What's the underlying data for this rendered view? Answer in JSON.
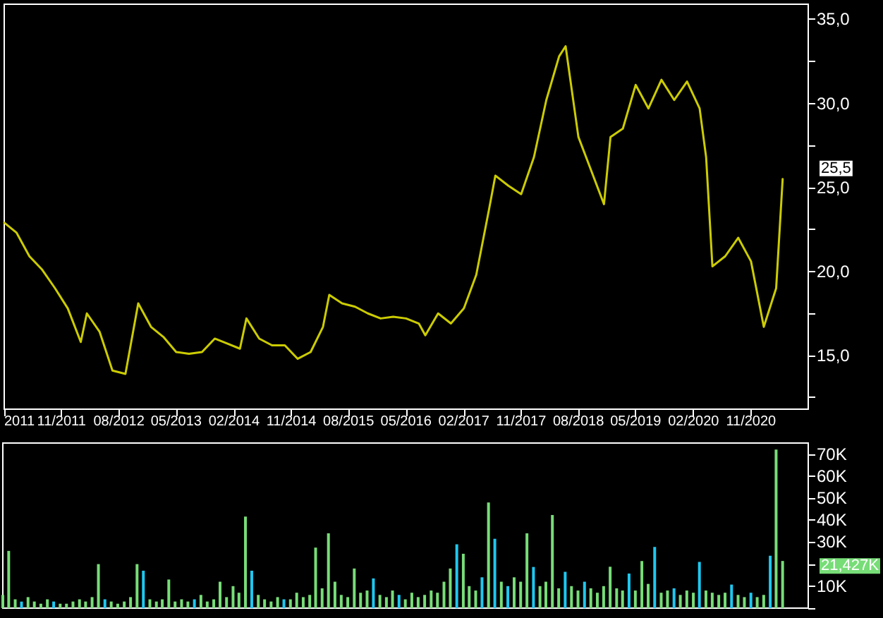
{
  "chart_data": [
    {
      "type": "line",
      "x": [
        "2011-02",
        "2011-04",
        "2011-06",
        "2011-08",
        "2011-10",
        "2011-12",
        "2012-02",
        "2012-03",
        "2012-05",
        "2012-07",
        "2012-09",
        "2012-11",
        "2013-01",
        "2013-03",
        "2013-05",
        "2013-07",
        "2013-09",
        "2013-11",
        "2014-01",
        "2014-03",
        "2014-04",
        "2014-06",
        "2014-08",
        "2014-10",
        "2014-12",
        "2015-02",
        "2015-04",
        "2015-05",
        "2015-07",
        "2015-09",
        "2015-11",
        "2016-01",
        "2016-03",
        "2016-05",
        "2016-07",
        "2016-08",
        "2016-10",
        "2016-12",
        "2017-02",
        "2017-04",
        "2017-06",
        "2017-07",
        "2017-09",
        "2017-11",
        "2018-01",
        "2018-03",
        "2018-05",
        "2018-06",
        "2018-08",
        "2018-10",
        "2018-12",
        "2019-01",
        "2019-03",
        "2019-05",
        "2019-07",
        "2019-09",
        "2019-11",
        "2020-01",
        "2020-03",
        "2020-04",
        "2020-05",
        "2020-07",
        "2020-09",
        "2020-11",
        "2021-01",
        "2021-03",
        "2021-04"
      ],
      "series": [
        {
          "color": "#cccc00",
          "values": [
            22.9,
            22.3,
            20.9,
            20.1,
            19.0,
            17.8,
            15.8,
            17.5,
            16.4,
            14.1,
            13.9,
            18.1,
            16.7,
            16.1,
            15.2,
            15.1,
            15.2,
            16.0,
            15.7,
            15.4,
            17.2,
            16.0,
            15.6,
            15.6,
            14.8,
            15.2,
            16.7,
            18.6,
            18.1,
            17.9,
            17.5,
            17.2,
            17.3,
            17.2,
            16.9,
            16.2,
            17.5,
            16.9,
            17.8,
            19.8,
            23.7,
            25.7,
            25.1,
            24.6,
            26.8,
            30.2,
            32.8,
            33.4,
            28.0,
            26.0,
            24.0,
            28.0,
            28.5,
            31.1,
            29.7,
            31.4,
            30.2,
            31.3,
            29.7,
            26.8,
            20.3,
            20.9,
            22.0,
            20.6,
            16.7,
            19.0,
            25.5
          ]
        }
      ],
      "xlim": [
        "2011-02",
        "2021-08"
      ],
      "xticks": [
        {
          "value": "2011-02",
          "label": "2011"
        },
        {
          "value": "2011-11",
          "label": "11/2011"
        },
        {
          "value": "2012-08",
          "label": "08/2012"
        },
        {
          "value": "2013-05",
          "label": "05/2013"
        },
        {
          "value": "2014-02",
          "label": "02/2014"
        },
        {
          "value": "2014-11",
          "label": "11/2014"
        },
        {
          "value": "2015-08",
          "label": "08/2015"
        },
        {
          "value": "2016-05",
          "label": "05/2016"
        },
        {
          "value": "2017-02",
          "label": "02/2017"
        },
        {
          "value": "2017-11",
          "label": "11/2017"
        },
        {
          "value": "2018-08",
          "label": "08/2018"
        },
        {
          "value": "2019-05",
          "label": "05/2019"
        },
        {
          "value": "2020-02",
          "label": "02/2020"
        },
        {
          "value": "2020-11",
          "label": "11/2020"
        }
      ],
      "ylim": [
        11.8,
        35.9
      ],
      "yticks": [
        {
          "value": 12.5,
          "label": null
        },
        {
          "value": 15,
          "label": "15,0"
        },
        {
          "value": 17.5,
          "label": null
        },
        {
          "value": 20,
          "label": "20,0"
        },
        {
          "value": 22.5,
          "label": null
        },
        {
          "value": 25,
          "label": "25,0"
        },
        {
          "value": 27.5,
          "label": null
        },
        {
          "value": 30,
          "label": "30,0"
        },
        {
          "value": 32.5,
          "label": null
        },
        {
          "value": 35,
          "label": "35,0"
        }
      ],
      "annotations": [
        "25,5"
      ],
      "marker": "none",
      "line_style": "solid",
      "grid": false
    },
    {
      "type": "bar",
      "x": [
        "2011-02",
        "2011-03",
        "2011-04",
        "2011-05",
        "2011-06",
        "2011-07",
        "2011-08",
        "2011-09",
        "2011-10",
        "2011-11",
        "2011-12",
        "2012-01",
        "2012-02",
        "2012-03",
        "2012-04",
        "2012-05",
        "2012-06",
        "2012-07",
        "2012-08",
        "2012-09",
        "2012-10",
        "2012-11",
        "2012-12",
        "2013-01",
        "2013-02",
        "2013-03",
        "2013-04",
        "2013-05",
        "2013-06",
        "2013-07",
        "2013-08",
        "2013-09",
        "2013-10",
        "2013-11",
        "2013-12",
        "2014-01",
        "2014-02",
        "2014-03",
        "2014-04",
        "2014-05",
        "2014-06",
        "2014-07",
        "2014-08",
        "2014-09",
        "2014-10",
        "2014-11",
        "2014-12",
        "2015-01",
        "2015-02",
        "2015-03",
        "2015-04",
        "2015-05",
        "2015-06",
        "2015-07",
        "2015-08",
        "2015-09",
        "2015-10",
        "2015-11",
        "2015-12",
        "2016-01",
        "2016-02",
        "2016-03",
        "2016-04",
        "2016-05",
        "2016-06",
        "2016-07",
        "2016-08",
        "2016-09",
        "2016-10",
        "2016-11",
        "2016-12",
        "2017-01",
        "2017-02",
        "2017-03",
        "2017-04",
        "2017-05",
        "2017-06",
        "2017-07",
        "2017-08",
        "2017-09",
        "2017-10",
        "2017-11",
        "2017-12",
        "2018-01",
        "2018-02",
        "2018-03",
        "2018-04",
        "2018-05",
        "2018-06",
        "2018-07",
        "2018-08",
        "2018-09",
        "2018-10",
        "2018-11",
        "2018-12",
        "2019-01",
        "2019-02",
        "2019-03",
        "2019-04",
        "2019-05",
        "2019-06",
        "2019-07",
        "2019-08",
        "2019-09",
        "2019-10",
        "2019-11",
        "2019-12",
        "2020-01",
        "2020-02",
        "2020-03",
        "2020-04",
        "2020-05",
        "2020-06",
        "2020-07",
        "2020-08",
        "2020-09",
        "2020-10",
        "2020-11",
        "2020-12",
        "2021-01",
        "2021-02",
        "2021-03",
        "2021-04"
      ],
      "values": [
        6,
        26,
        4,
        3,
        5,
        3,
        2,
        4,
        3,
        2,
        2,
        3,
        4,
        3,
        5,
        20,
        4,
        3,
        2,
        3,
        5,
        20,
        17,
        4,
        3,
        4,
        13,
        3,
        4,
        3,
        4,
        6,
        3,
        4,
        12,
        5,
        10,
        7,
        41.6,
        17,
        6,
        4,
        3,
        5,
        4,
        4,
        7,
        5,
        6,
        27.5,
        9,
        34,
        12,
        6,
        5,
        18,
        7,
        8,
        13.5,
        6,
        5,
        8,
        6,
        4,
        7,
        5,
        6,
        8,
        7,
        12,
        18,
        29,
        24.7,
        10,
        8,
        14,
        48,
        31.5,
        12,
        10,
        14,
        12,
        34,
        18.7,
        10,
        12,
        42.3,
        9,
        16.5,
        10,
        8,
        12,
        9,
        7,
        10,
        18.8,
        9,
        8,
        15.7,
        8,
        21.4,
        11,
        27.8,
        7,
        8,
        9,
        6,
        8,
        7,
        21,
        8,
        7,
        6,
        7,
        10.7,
        6,
        5,
        7,
        5,
        6,
        23.8,
        72,
        21.427
      ],
      "colors": [
        "#77dd77",
        "#77dd77",
        "#77dd77",
        "#1ec8f0",
        "#77dd77",
        "#77dd77",
        "#77dd77",
        "#77dd77",
        "#1ec8f0",
        "#77dd77",
        "#77dd77",
        "#77dd77",
        "#77dd77",
        "#77dd77",
        "#77dd77",
        "#77dd77",
        "#1ec8f0",
        "#77dd77",
        "#77dd77",
        "#77dd77",
        "#77dd77",
        "#77dd77",
        "#1ec8f0",
        "#77dd77",
        "#77dd77",
        "#77dd77",
        "#77dd77",
        "#77dd77",
        "#77dd77",
        "#77dd77",
        "#1ec8f0",
        "#77dd77",
        "#77dd77",
        "#77dd77",
        "#77dd77",
        "#77dd77",
        "#77dd77",
        "#77dd77",
        "#77dd77",
        "#1ec8f0",
        "#77dd77",
        "#77dd77",
        "#77dd77",
        "#77dd77",
        "#1ec8f0",
        "#77dd77",
        "#77dd77",
        "#77dd77",
        "#77dd77",
        "#77dd77",
        "#77dd77",
        "#77dd77",
        "#77dd77",
        "#77dd77",
        "#77dd77",
        "#77dd77",
        "#77dd77",
        "#77dd77",
        "#1ec8f0",
        "#77dd77",
        "#77dd77",
        "#77dd77",
        "#1ec8f0",
        "#77dd77",
        "#77dd77",
        "#77dd77",
        "#77dd77",
        "#77dd77",
        "#77dd77",
        "#77dd77",
        "#77dd77",
        "#1ec8f0",
        "#77dd77",
        "#77dd77",
        "#77dd77",
        "#1ec8f0",
        "#77dd77",
        "#1ec8f0",
        "#77dd77",
        "#1ec8f0",
        "#77dd77",
        "#77dd77",
        "#77dd77",
        "#1ec8f0",
        "#77dd77",
        "#77dd77",
        "#77dd77",
        "#77dd77",
        "#1ec8f0",
        "#77dd77",
        "#77dd77",
        "#1ec8f0",
        "#77dd77",
        "#77dd77",
        "#77dd77",
        "#77dd77",
        "#77dd77",
        "#77dd77",
        "#1ec8f0",
        "#77dd77",
        "#77dd77",
        "#77dd77",
        "#1ec8f0",
        "#77dd77",
        "#77dd77",
        "#1ec8f0",
        "#77dd77",
        "#77dd77",
        "#77dd77",
        "#1ec8f0",
        "#77dd77",
        "#77dd77",
        "#77dd77",
        "#77dd77",
        "#1ec8f0",
        "#77dd77",
        "#77dd77",
        "#1ec8f0",
        "#77dd77",
        "#77dd77",
        "#1ec8f0",
        "#77dd77",
        "#77dd77"
      ],
      "xlim": [
        "2011-02",
        "2021-08"
      ],
      "ylim": [
        0,
        75
      ],
      "yticks": [
        {
          "value": 0,
          "label": null
        },
        {
          "value": 10,
          "label": "10K"
        },
        {
          "value": 20,
          "label": null
        },
        {
          "value": 30,
          "label": "30K"
        },
        {
          "value": 40,
          "label": "40K"
        },
        {
          "value": 50,
          "label": "50K"
        },
        {
          "value": 60,
          "label": "60K"
        },
        {
          "value": 70,
          "label": "70K"
        }
      ],
      "annotations": [
        "21,427K"
      ],
      "tick_labels": "y",
      "grid": false
    }
  ]
}
